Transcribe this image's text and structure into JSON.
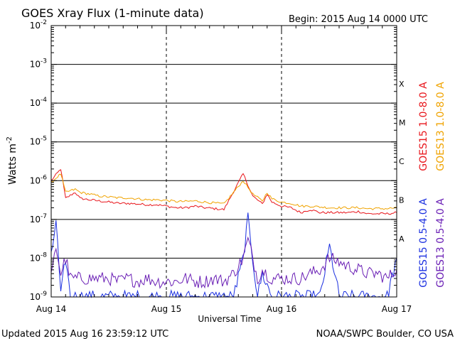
{
  "header": {
    "title": "GOES Xray Flux (1-minute data)",
    "begin": "Begin:  2015 Aug 14 0000 UTC"
  },
  "footer": {
    "updated": "Updated 2015 Aug 16 23:59:12 UTC",
    "credit": "NOAA/SWPC Boulder, CO USA"
  },
  "colors": {
    "goes15_long": "#e8151b",
    "goes13_long": "#f0a300",
    "goes15_short": "#1a2fe0",
    "goes13_short": "#6a1fb5"
  },
  "chart_data": {
    "type": "line",
    "xlabel": "Universal Time",
    "ylabel_base": "Watts m",
    "ylabel_sup": "-2",
    "yscale": "log",
    "ylim": [
      1e-09,
      0.01
    ],
    "xlim": [
      "2015-08-14 00:00",
      "2015-08-17 00:00"
    ],
    "x_ticks": [
      {
        "value": "2015-08-14",
        "label": "Aug 14"
      },
      {
        "value": "2015-08-15",
        "label": "Aug 15"
      },
      {
        "value": "2015-08-16",
        "label": "Aug 16"
      },
      {
        "value": "2015-08-17",
        "label": "Aug 17"
      }
    ],
    "y_ticks": [
      {
        "base": "10",
        "exp": "-9"
      },
      {
        "base": "10",
        "exp": "-8"
      },
      {
        "base": "10",
        "exp": "-7"
      },
      {
        "base": "10",
        "exp": "-6"
      },
      {
        "base": "10",
        "exp": "-5"
      },
      {
        "base": "10",
        "exp": "-4"
      },
      {
        "base": "10",
        "exp": "-3"
      },
      {
        "base": "10",
        "exp": "-2"
      }
    ],
    "flare_classes": [
      {
        "label": "A",
        "flux": 1e-08
      },
      {
        "label": "B",
        "flux": 1e-07
      },
      {
        "label": "C",
        "flux": 1e-06
      },
      {
        "label": "M",
        "flux": 1e-05
      },
      {
        "label": "X",
        "flux": 0.0001
      }
    ],
    "grid": true,
    "series": [
      {
        "name": "GOES15 1.0-8.0 A",
        "color": "#e8151b",
        "x_hours": [
          0,
          2,
          3,
          5,
          6,
          8,
          10,
          12,
          14,
          16,
          18,
          20,
          22,
          24,
          26,
          28,
          30,
          32,
          36,
          40,
          42,
          44,
          45,
          46,
          48,
          50,
          52,
          54,
          56,
          58,
          60,
          62,
          64,
          66,
          68,
          70,
          72
        ],
        "values": [
          1e-06,
          2e-06,
          3.5e-07,
          5e-07,
          3.5e-07,
          3.2e-07,
          3e-07,
          2.8e-07,
          2.6e-07,
          2.6e-07,
          2.5e-07,
          2.4e-07,
          2.4e-07,
          2.2e-07,
          2e-07,
          2e-07,
          2.2e-07,
          2e-07,
          1.8e-07,
          1.5e-06,
          4e-07,
          2.5e-07,
          4.5e-07,
          2.8e-07,
          2.2e-07,
          2e-07,
          1.5e-07,
          1.8e-07,
          1.5e-07,
          1.5e-07,
          1.5e-07,
          1.5e-07,
          1.6e-07,
          1.4e-07,
          1.4e-07,
          1.4e-07,
          1.5e-07
        ]
      },
      {
        "name": "GOES13 1.0-8.0 A",
        "color": "#f0a300",
        "x_hours": [
          0,
          2,
          3,
          5,
          6,
          8,
          10,
          12,
          14,
          16,
          18,
          20,
          22,
          24,
          26,
          28,
          30,
          32,
          36,
          40,
          42,
          44,
          45,
          46,
          48,
          50,
          52,
          54,
          56,
          58,
          60,
          62,
          64,
          66,
          68,
          70,
          72
        ],
        "values": [
          9e-07,
          1.5e-06,
          5e-07,
          6e-07,
          5e-07,
          4.5e-07,
          4e-07,
          3.8e-07,
          3.6e-07,
          3.6e-07,
          3.4e-07,
          3.2e-07,
          3.2e-07,
          3.1e-07,
          2.9e-07,
          2.9e-07,
          3e-07,
          2.8e-07,
          2.5e-07,
          1e-06,
          4.5e-07,
          3e-07,
          5e-07,
          3.4e-07,
          2.8e-07,
          2.6e-07,
          2.2e-07,
          2.2e-07,
          2.1e-07,
          2e-07,
          2e-07,
          2e-07,
          2e-07,
          1.9e-07,
          1.9e-07,
          1.9e-07,
          2e-07
        ]
      },
      {
        "name": "GOES15 0.5-4.0 A",
        "color": "#1a2fe0",
        "x_hours": [
          0,
          1,
          2,
          3,
          4,
          6,
          8,
          10,
          14,
          18,
          22,
          26,
          28,
          30,
          32,
          34,
          36,
          38,
          40,
          41,
          42,
          43,
          44,
          46,
          48,
          50,
          54,
          56,
          58,
          60,
          62,
          64,
          66,
          68,
          70,
          72
        ],
        "values": [
          1e-08,
          1e-07,
          1e-09,
          1e-08,
          1e-09,
          1e-09,
          1e-09,
          1e-09,
          1e-09,
          1e-09,
          1e-09,
          1e-09,
          1e-09,
          1e-09,
          1e-09,
          1e-09,
          1e-09,
          1e-09,
          1e-08,
          1e-07,
          1e-08,
          1e-09,
          4e-09,
          1e-09,
          1e-09,
          1e-09,
          1e-09,
          1e-09,
          2e-08,
          1e-09,
          1e-09,
          1e-09,
          1e-09,
          1e-09,
          1e-09,
          1e-08
        ]
      },
      {
        "name": "GOES13 0.5-4.0 A",
        "color": "#6a1fb5",
        "x_hours": [
          0,
          1,
          2,
          3,
          4,
          6,
          8,
          10,
          12,
          14,
          16,
          18,
          20,
          22,
          24,
          26,
          28,
          30,
          32,
          34,
          36,
          38,
          40,
          41,
          42,
          43,
          44,
          46,
          48,
          50,
          52,
          54,
          56,
          58,
          60,
          62,
          64,
          66,
          68,
          70,
          72
        ],
        "values": [
          3e-09,
          2e-08,
          4e-09,
          1e-08,
          3e-09,
          3e-09,
          3e-09,
          3e-09,
          3e-09,
          2.5e-09,
          3e-09,
          2.5e-09,
          3e-09,
          2.5e-09,
          2.5e-09,
          2.5e-09,
          3e-09,
          2.5e-09,
          2.5e-09,
          3e-09,
          2.5e-09,
          4e-09,
          1e-08,
          3e-08,
          1e-08,
          3e-09,
          5e-09,
          3e-09,
          3e-09,
          3e-09,
          3e-09,
          4e-09,
          5e-09,
          1e-08,
          8e-09,
          6e-09,
          5e-09,
          4e-09,
          4e-09,
          3e-09,
          5e-09
        ]
      }
    ]
  }
}
